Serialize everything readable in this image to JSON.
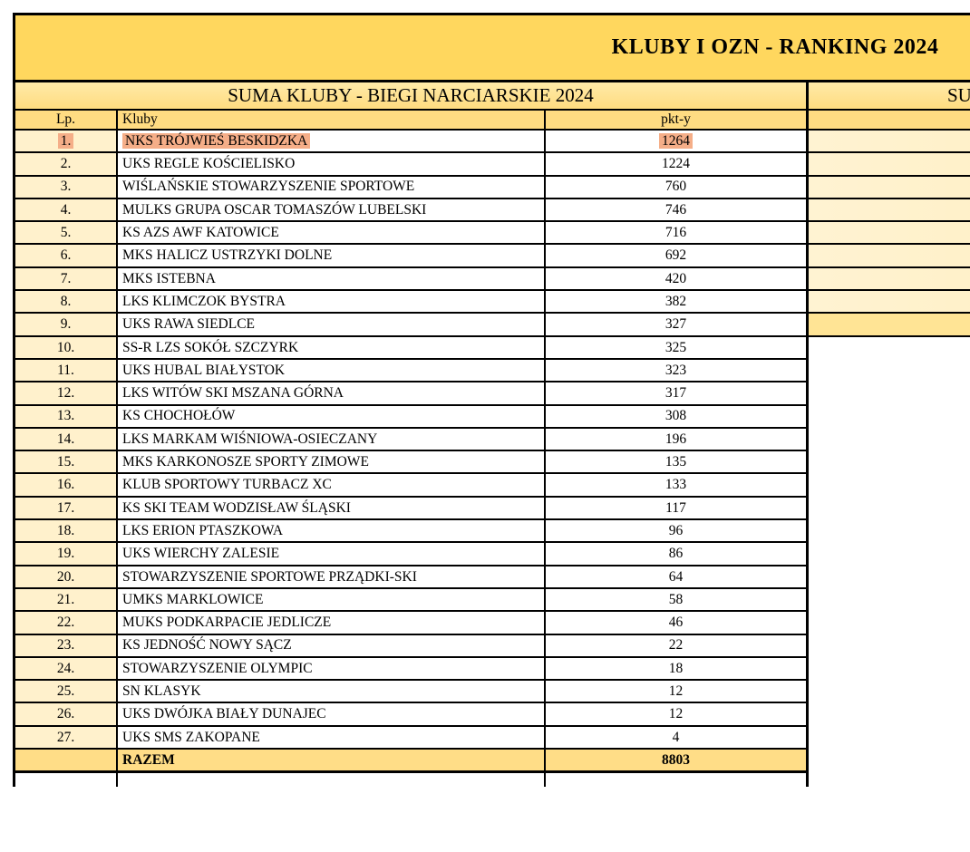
{
  "title": "KLUBY I OZN - RANKING 2024",
  "section_headers": {
    "left": "SUMA KLUBY - BIEGI NARCIARSKIE 2024",
    "right_visible_fragment": "SU"
  },
  "table": {
    "columns": {
      "lp": "Lp.",
      "klub": "Kluby",
      "pkt": "pkt-y"
    },
    "rows": [
      {
        "lp": "1.",
        "klub": "NKS TRÓJWIEŚ BESKIDZKA",
        "pkt": "1264",
        "highlight": true
      },
      {
        "lp": "2.",
        "klub": "UKS REGLE KOŚCIELISKO",
        "pkt": "1224"
      },
      {
        "lp": "3.",
        "klub": "WIŚLAŃSKIE STOWARZYSZENIE SPORTOWE",
        "pkt": "760"
      },
      {
        "lp": "4.",
        "klub": "MULKS GRUPA OSCAR TOMASZÓW LUBELSKI",
        "pkt": "746"
      },
      {
        "lp": "5.",
        "klub": "KS AZS AWF KATOWICE",
        "pkt": "716"
      },
      {
        "lp": "6.",
        "klub": "MKS HALICZ USTRZYKI DOLNE",
        "pkt": "692"
      },
      {
        "lp": "7.",
        "klub": "MKS ISTEBNA",
        "pkt": "420"
      },
      {
        "lp": "8.",
        "klub": "LKS KLIMCZOK BYSTRA",
        "pkt": "382"
      },
      {
        "lp": "9.",
        "klub": "UKS RAWA SIEDLCE",
        "pkt": "327"
      },
      {
        "lp": "10.",
        "klub": "SS-R LZS SOKÓŁ SZCZYRK",
        "pkt": "325"
      },
      {
        "lp": "11.",
        "klub": "UKS HUBAL BIAŁYSTOK",
        "pkt": "323"
      },
      {
        "lp": "12.",
        "klub": "LKS WITÓW SKI MSZANA GÓRNA",
        "pkt": "317"
      },
      {
        "lp": "13.",
        "klub": "KS CHOCHOŁÓW",
        "pkt": "308"
      },
      {
        "lp": "14.",
        "klub": "LKS MARKAM WIŚNIOWA-OSIECZANY",
        "pkt": "196"
      },
      {
        "lp": "15.",
        "klub": "MKS KARKONOSZE SPORTY ZIMOWE",
        "pkt": "135"
      },
      {
        "lp": "16.",
        "klub": "KLUB SPORTOWY TURBACZ XC",
        "pkt": "133"
      },
      {
        "lp": "17.",
        "klub": "KS SKI TEAM WODZISŁAW ŚLĄSKI",
        "pkt": "117"
      },
      {
        "lp": "18.",
        "klub": "LKS ERION PTASZKOWA",
        "pkt": "96"
      },
      {
        "lp": "19.",
        "klub": "UKS WIERCHY ZALESIE",
        "pkt": "86"
      },
      {
        "lp": "20.",
        "klub": "STOWARZYSZENIE SPORTOWE PRZĄDKI-SKI",
        "pkt": "64"
      },
      {
        "lp": "21.",
        "klub": "UMKS MARKLOWICE",
        "pkt": "58"
      },
      {
        "lp": "22.",
        "klub": "MUKS PODKARPACIE JEDLICZE",
        "pkt": "46"
      },
      {
        "lp": "23.",
        "klub": "KS JEDNOŚĆ NOWY SĄCZ",
        "pkt": "22"
      },
      {
        "lp": "24.",
        "klub": "STOWARZYSZENIE OLYMPIC",
        "pkt": "18"
      },
      {
        "lp": "25.",
        "klub": "SN KLASYK",
        "pkt": "12"
      },
      {
        "lp": "26.",
        "klub": "UKS DWÓJKA BIAŁY DUNAJEC",
        "pkt": "12"
      },
      {
        "lp": "27.",
        "klub": "UKS SMS ZAKOPANE",
        "pkt": "4"
      }
    ],
    "footer": {
      "label": "RAZEM",
      "pkt": "8803"
    },
    "right_section_filled_rows": 9
  },
  "colors": {
    "title_bar": "#ffd75e",
    "section_header": "#ffe596",
    "column_header": "#ffdc82",
    "lp_column": "#fff1cc",
    "right_rows": "#ffeebd",
    "right_row_9": "#ffe495",
    "razem_row": "#ffdd87",
    "highlight": "#f5ae88",
    "border": "#000000"
  }
}
